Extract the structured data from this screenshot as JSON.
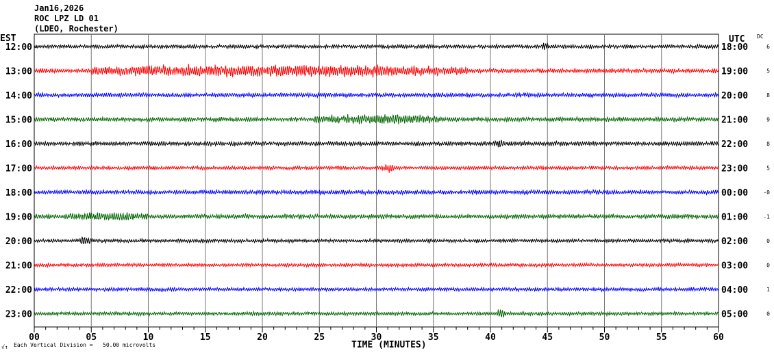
{
  "header": {
    "date": "Jan16,2026",
    "station": "ROC LPZ LD 01",
    "network": "(LDEO, Rochester)"
  },
  "chart_data": {
    "type": "line",
    "title": "ROC LPZ LD 01",
    "xlabel": "TIME (MINUTES)",
    "left_axis_label": "EST",
    "right_axis_label": "UTC",
    "dc_label": "DC",
    "xlim": [
      0,
      60
    ],
    "x_ticks": [
      "00",
      "05",
      "10",
      "15",
      "20",
      "25",
      "30",
      "35",
      "40",
      "45",
      "50",
      "55",
      "60"
    ],
    "scale_note": "Each Vertical Division =   50.00 microvolts",
    "corner_mark": "√↑",
    "rows": [
      {
        "est": "12:00",
        "utc": "18:00",
        "dc": "6",
        "color": "#000000",
        "amp": 2.5,
        "events": [
          [
            44.5,
            0.6,
            3
          ]
        ]
      },
      {
        "est": "13:00",
        "utc": "19:00",
        "dc": "5",
        "color": "#ff0000",
        "amp": 3,
        "events": [
          [
            5,
            33,
            7
          ]
        ]
      },
      {
        "est": "14:00",
        "utc": "20:00",
        "dc": "8",
        "color": "#0000ff",
        "amp": 3,
        "events": []
      },
      {
        "est": "15:00",
        "utc": "21:00",
        "dc": "9",
        "color": "#006400",
        "amp": 3,
        "events": [
          [
            24.5,
            11,
            5
          ]
        ]
      },
      {
        "est": "16:00",
        "utc": "22:00",
        "dc": "8",
        "color": "#000000",
        "amp": 3,
        "events": [
          [
            40.2,
            1,
            5
          ]
        ]
      },
      {
        "est": "17:00",
        "utc": "23:00",
        "dc": "5",
        "color": "#ff0000",
        "amp": 2.5,
        "events": [
          [
            30.5,
            1,
            5
          ]
        ]
      },
      {
        "est": "18:00",
        "utc": "00:00",
        "dc": "-0",
        "color": "#0000ff",
        "amp": 3,
        "events": []
      },
      {
        "est": "19:00",
        "utc": "01:00",
        "dc": "-1",
        "color": "#006400",
        "amp": 3,
        "events": [
          [
            3,
            7,
            4
          ]
        ]
      },
      {
        "est": "20:00",
        "utc": "02:00",
        "dc": "0",
        "color": "#000000",
        "amp": 2.5,
        "events": [
          [
            4,
            1,
            6
          ]
        ]
      },
      {
        "est": "21:00",
        "utc": "03:00",
        "dc": "0",
        "color": "#ff0000",
        "amp": 2.5,
        "events": []
      },
      {
        "est": "22:00",
        "utc": "04:00",
        "dc": "1",
        "color": "#0000ff",
        "amp": 2.5,
        "events": []
      },
      {
        "est": "23:00",
        "utc": "05:00",
        "dc": "0",
        "color": "#006400",
        "amp": 2.5,
        "events": [
          [
            40.5,
            0.8,
            5
          ]
        ]
      }
    ]
  }
}
